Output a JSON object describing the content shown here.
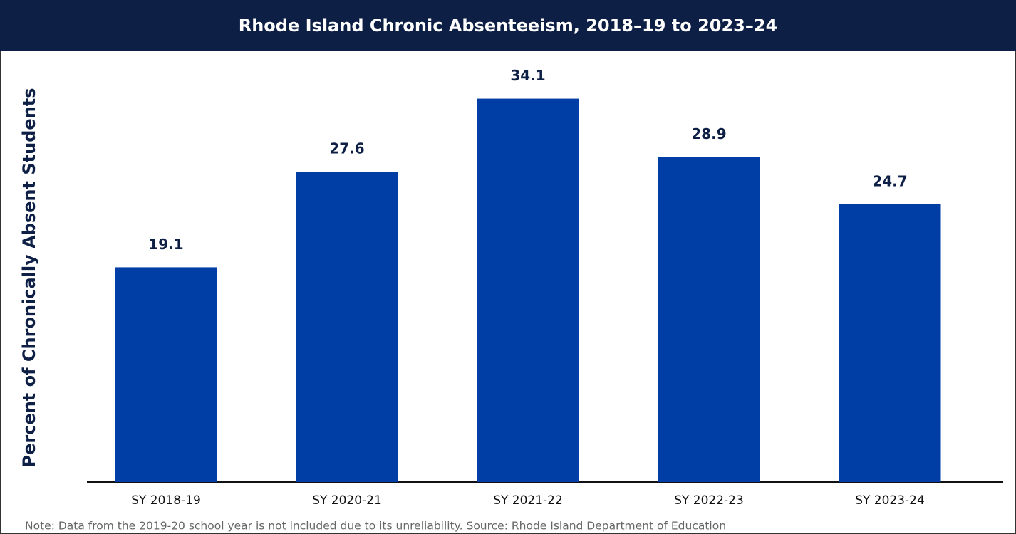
{
  "chart_data": {
    "type": "bar",
    "title": "Rhode Island Chronic Absenteeism, 2018–19 to 2023–24",
    "y_label": "Percent of Chronically Absent Students",
    "categories": [
      "SY 2018-19",
      "SY 2020-21",
      "SY 2021-22",
      "SY 2022-23",
      "SY 2023-24"
    ],
    "values": [
      19.1,
      27.6,
      34.1,
      28.9,
      24.7
    ],
    "color": "#003da5",
    "ylim": [
      0,
      38
    ],
    "note": "Note: Data from the 2019-20 school year is not included due to its unreliability. Source: Rhode Island Department of Education"
  }
}
